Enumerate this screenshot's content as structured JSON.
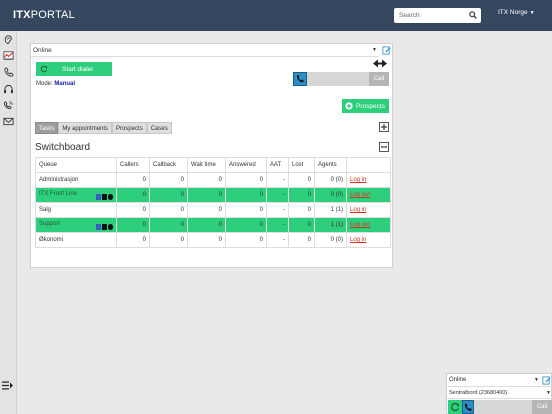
{
  "header": {
    "logo_bold": "ITX",
    "logo_rest": "PORTAL",
    "search_placeholder": "Search",
    "user_name": "ITX Norge"
  },
  "sidebar": {
    "icons": [
      "ear-icon",
      "inbox-chart-icon",
      "phone-icon",
      "headset-icon",
      "phone-wave-icon",
      "mail-icon"
    ]
  },
  "panel": {
    "status_value": "Online",
    "start_dialer_label": "Start dialer",
    "mode_label": "Mode:",
    "mode_value": "Manual",
    "call_label": "Call",
    "prospects_label": "Prospects",
    "tabs": [
      "Tasks",
      "My appointments",
      "Prospects",
      "Cases"
    ],
    "active_tab": "Tasks",
    "switchboard_title": "Switchboard"
  },
  "queue_table": {
    "headers": [
      "Queue",
      "Callers",
      "Callback",
      "Wait time",
      "Answered",
      "AAT",
      "Lost",
      "Agents",
      ""
    ],
    "rows": [
      {
        "queue": "Administrasjon",
        "callers": "0",
        "callback": "0",
        "wait": "0",
        "answered": "0",
        "aat": "-",
        "lost": "0",
        "agents": "0 (0)",
        "action": "Log in",
        "highlight": false
      },
      {
        "queue": "ITX Front Line",
        "callers": "0",
        "callback": "0",
        "wait": "0",
        "answered": "0",
        "aat": "-",
        "lost": "0",
        "agents": "0 (0)",
        "action": "Log out",
        "highlight": true
      },
      {
        "queue": "Salg",
        "callers": "0",
        "callback": "0",
        "wait": "0",
        "answered": "0",
        "aat": "-",
        "lost": "0",
        "agents": "1 (1)",
        "action": "Log in",
        "highlight": false
      },
      {
        "queue": "Support",
        "callers": "0",
        "callback": "0",
        "wait": "0",
        "answered": "0",
        "aat": "-",
        "lost": "0",
        "agents": "1 (1)",
        "action": "Log out",
        "highlight": true
      },
      {
        "queue": "Økonomi",
        "callers": "0",
        "callback": "0",
        "wait": "0",
        "answered": "0",
        "aat": "-",
        "lost": "0",
        "agents": "0 (0)",
        "action": "Log in",
        "highlight": false
      }
    ]
  },
  "mini_dialer": {
    "status_value": "Online",
    "line_value": "Sentralbord (23680400)",
    "call_label": "Call"
  },
  "colors": {
    "topbar": "#35475f",
    "green": "#2dce7c",
    "blue": "#2b8ec5",
    "login_red": "#d9331f",
    "mode_blue": "#1a22a0"
  }
}
